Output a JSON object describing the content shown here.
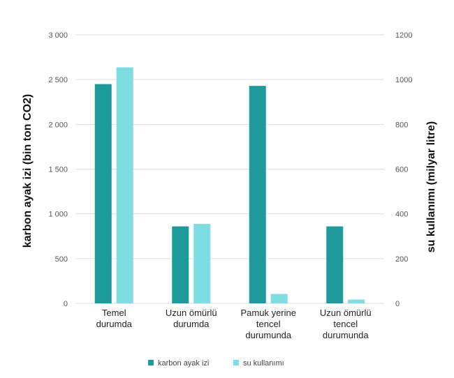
{
  "chart_data": {
    "type": "bar",
    "categories": [
      [
        "Temel",
        "durumda"
      ],
      [
        "Uzun ömürlü",
        "durumda"
      ],
      [
        "Pamuk yerine",
        "tencel",
        "durumunda"
      ],
      [
        "Uzun ömürlü",
        "tencel",
        "durumunda"
      ]
    ],
    "series": [
      {
        "name": "karbon ayak izi",
        "axis": "left",
        "color": "#1f9a9a",
        "values": [
          2450,
          860,
          2430,
          860
        ]
      },
      {
        "name": "su kullanımı",
        "axis": "right",
        "color": "#7ddde0",
        "values": [
          1055,
          355,
          42,
          17
        ]
      }
    ],
    "left_axis": {
      "label": "karbon ayak izi (bin ton CO2)",
      "ylim": [
        0,
        3000
      ],
      "ticks": [
        0,
        500,
        1000,
        1500,
        2000,
        2500,
        3000
      ],
      "tick_labels": [
        "0",
        "500",
        "1 000",
        "1 500",
        "2 000",
        "2 500",
        "3 000"
      ]
    },
    "right_axis": {
      "label": "su kullanımı (milyar litre)",
      "ylim": [
        0,
        1200
      ],
      "ticks": [
        0,
        200,
        400,
        600,
        800,
        1000,
        1200
      ],
      "tick_labels": [
        "0",
        "200",
        "400",
        "600",
        "800",
        "1000",
        "1200"
      ]
    },
    "grid": true,
    "legend": "bottom-center"
  }
}
